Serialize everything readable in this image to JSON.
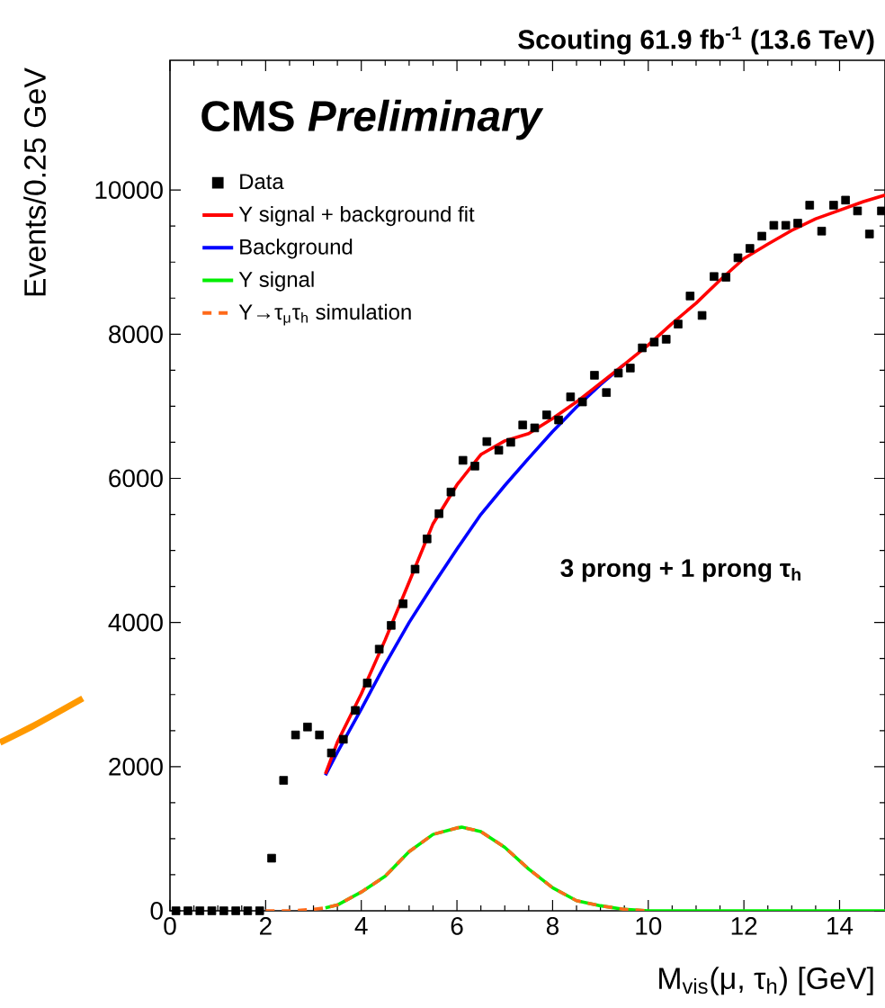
{
  "chart_data": {
    "type": "scatter",
    "title": "Scouting 61.9 fb$^{-1}$ (13.6 TeV)",
    "xlabel": "M$_{vis}$(μ, τ$_{h}$) [GeV]",
    "ylabel": "Events/0.25 GeV",
    "annotations": [
      "**CMS** *Preliminary*",
      "3 prong + 1 prong τ$_{h}$"
    ],
    "xlim": [
      0,
      14.95
    ],
    "ylim": [
      0,
      11800
    ],
    "xticks": [
      0,
      2,
      4,
      6,
      8,
      10,
      12,
      14
    ],
    "yticks": [
      0,
      2000,
      4000,
      6000,
      8000,
      10000
    ],
    "legend": "top left",
    "series": [
      {
        "name": "Data",
        "marker": "square",
        "color": "#000000",
        "x": [
          0.125,
          0.375,
          0.625,
          0.875,
          1.125,
          1.375,
          1.625,
          1.875,
          2.125,
          2.375,
          2.625,
          2.875,
          3.125,
          3.375,
          3.625,
          3.875,
          4.125,
          4.375,
          4.625,
          4.875,
          5.125,
          5.375,
          5.625,
          5.875,
          6.125,
          6.375,
          6.625,
          6.875,
          7.125,
          7.375,
          7.625,
          7.875,
          8.125,
          8.375,
          8.625,
          8.875,
          9.125,
          9.375,
          9.625,
          9.875,
          10.125,
          10.375,
          10.625,
          10.875,
          11.125,
          11.375,
          11.625,
          11.875,
          12.125,
          12.375,
          12.625,
          12.875,
          13.125,
          13.375,
          13.625,
          13.875,
          14.125,
          14.375,
          14.625,
          14.875
        ],
        "values": [
          0,
          0,
          0,
          0,
          0,
          0,
          0,
          0,
          730,
          1810,
          2440,
          2550,
          2440,
          2190,
          2380,
          2780,
          3160,
          3630,
          3960,
          4260,
          4740,
          5160,
          5510,
          5810,
          6250,
          6170,
          6510,
          6390,
          6500,
          6740,
          6700,
          6880,
          6810,
          7130,
          7060,
          7430,
          7190,
          7460,
          7530,
          7810,
          7890,
          7930,
          8140,
          8530,
          8260,
          8800,
          8790,
          9060,
          9190,
          9360,
          9510,
          9510,
          9540,
          9790,
          9430,
          9790,
          9860,
          9710,
          9390,
          9710
        ]
      },
      {
        "name": "Υ signal + background fit",
        "type": "line",
        "line_style": "solid",
        "color": "#ff0000",
        "x": [
          3.25,
          3.5,
          4,
          4.5,
          5,
          5.5,
          6,
          6.5,
          7,
          7.5,
          8,
          8.5,
          9,
          9.5,
          10,
          10.5,
          11,
          11.5,
          12,
          12.5,
          13,
          13.5,
          14,
          14.5,
          14.95
        ],
        "values": [
          1900,
          2340,
          3010,
          3760,
          4560,
          5370,
          5910,
          6330,
          6520,
          6620,
          6830,
          7060,
          7320,
          7580,
          7850,
          8150,
          8430,
          8750,
          9050,
          9250,
          9440,
          9600,
          9720,
          9840,
          9930
        ]
      },
      {
        "name": "Background",
        "type": "line",
        "line_style": "solid",
        "color": "#0000ff",
        "x": [
          3.25,
          3.5,
          4,
          4.5,
          5,
          5.5,
          6,
          6.5,
          7,
          7.5,
          8,
          8.5,
          9,
          9.5
        ],
        "values": [
          1880,
          2200,
          2800,
          3420,
          4000,
          4520,
          5020,
          5500,
          5900,
          6280,
          6650,
          6990,
          7300,
          7580
        ]
      },
      {
        "name": "Υ signal",
        "type": "line",
        "line_style": "solid",
        "color": "#00ee00",
        "x": [
          3.25,
          3.5,
          4,
          4.5,
          5,
          5.5,
          6,
          6.1,
          6.5,
          7,
          7.5,
          8,
          8.5,
          9,
          9.5,
          10,
          14.95
        ],
        "values": [
          40,
          80,
          260,
          480,
          820,
          1060,
          1150,
          1160,
          1100,
          880,
          580,
          320,
          140,
          70,
          20,
          0,
          0
        ]
      },
      {
        "name": "Υ→τ$_{μ}$τ$_{h}$ simulation",
        "type": "line",
        "line_style": "dashed",
        "color": "#ff6a1a",
        "x": [
          2,
          2.5,
          3,
          3.25,
          3.5,
          4,
          4.5,
          5,
          5.5,
          6,
          6.1,
          6.5,
          7,
          7.5,
          8,
          8.5,
          9,
          9.5,
          10
        ],
        "values": [
          0,
          0,
          20,
          40,
          80,
          260,
          480,
          820,
          1060,
          1150,
          1160,
          1100,
          880,
          580,
          320,
          140,
          70,
          20,
          0
        ]
      }
    ]
  }
}
